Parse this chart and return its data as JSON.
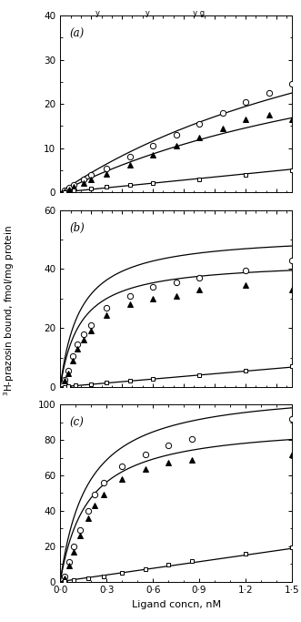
{
  "panels": [
    {
      "label": "(a)",
      "ylim": [
        0,
        40
      ],
      "yticks": [
        0,
        10,
        20,
        30,
        40
      ],
      "total_Bmax": 60.0,
      "total_Kd": 2.5,
      "specific_Bmax": 45.0,
      "specific_Kd": 2.5,
      "ns_slope": 3.5,
      "total_data_x": [
        0.03,
        0.06,
        0.09,
        0.15,
        0.2,
        0.3,
        0.45,
        0.6,
        0.75,
        0.9,
        1.05,
        1.2,
        1.35,
        1.5
      ],
      "total_data_y": [
        0.5,
        1.0,
        1.8,
        3.0,
        4.0,
        5.5,
        8.0,
        10.5,
        13.0,
        15.5,
        18.0,
        20.5,
        22.5,
        24.5
      ],
      "specific_data_x": [
        0.03,
        0.06,
        0.09,
        0.15,
        0.2,
        0.3,
        0.45,
        0.6,
        0.75,
        0.9,
        1.05,
        1.2,
        1.35,
        1.5
      ],
      "specific_data_y": [
        0.3,
        0.7,
        1.3,
        2.2,
        3.0,
        4.2,
        6.2,
        8.5,
        10.5,
        12.5,
        14.5,
        16.5,
        17.5,
        16.5
      ],
      "ns_data_x": [
        0.03,
        0.09,
        0.2,
        0.3,
        0.45,
        0.6,
        0.9,
        1.2,
        1.5
      ],
      "ns_data_y": [
        0.1,
        0.4,
        0.9,
        1.3,
        1.8,
        2.2,
        3.0,
        4.0,
        5.0
      ]
    },
    {
      "label": "(b)",
      "ylim": [
        0,
        60
      ],
      "yticks": [
        0,
        20,
        40,
        60
      ],
      "total_Bmax": 52.0,
      "total_Kd": 0.13,
      "specific_Bmax": 43.0,
      "specific_Kd": 0.13,
      "ns_slope": 4.5,
      "total_data_x": [
        0.03,
        0.05,
        0.08,
        0.11,
        0.15,
        0.2,
        0.3,
        0.45,
        0.6,
        0.75,
        0.9,
        1.2,
        1.5
      ],
      "total_data_y": [
        2.5,
        5.5,
        10.5,
        14.5,
        18.0,
        21.0,
        27.0,
        31.0,
        34.0,
        35.5,
        37.0,
        39.5,
        43.0
      ],
      "specific_data_x": [
        0.03,
        0.05,
        0.08,
        0.11,
        0.15,
        0.2,
        0.3,
        0.45,
        0.6,
        0.75,
        0.9,
        1.2,
        1.5
      ],
      "specific_data_y": [
        2.0,
        4.5,
        9.0,
        13.0,
        16.0,
        19.0,
        24.5,
        28.0,
        30.0,
        31.0,
        33.0,
        34.5,
        33.0
      ],
      "ns_data_x": [
        0.03,
        0.05,
        0.1,
        0.2,
        0.3,
        0.45,
        0.6,
        0.9,
        1.2,
        1.5
      ],
      "ns_data_y": [
        0.1,
        0.3,
        0.6,
        1.0,
        1.5,
        2.0,
        2.8,
        4.0,
        5.5,
        7.0
      ]
    },
    {
      "label": "(c)",
      "ylim": [
        0,
        100
      ],
      "yticks": [
        0,
        20,
        40,
        60,
        80,
        100
      ],
      "total_Bmax": 110.0,
      "total_Kd": 0.18,
      "specific_Bmax": 90.0,
      "specific_Kd": 0.18,
      "ns_slope": 12.5,
      "total_data_x": [
        0.03,
        0.06,
        0.09,
        0.13,
        0.18,
        0.22,
        0.28,
        0.4,
        0.55,
        0.7,
        0.85,
        1.5
      ],
      "total_data_y": [
        3.0,
        11.0,
        20.0,
        29.0,
        40.0,
        49.0,
        56.0,
        65.0,
        72.0,
        77.0,
        80.5,
        92.0
      ],
      "specific_data_x": [
        0.03,
        0.06,
        0.09,
        0.13,
        0.18,
        0.22,
        0.28,
        0.4,
        0.55,
        0.7,
        0.85,
        1.5
      ],
      "specific_data_y": [
        2.0,
        9.0,
        17.0,
        26.0,
        36.0,
        43.0,
        49.0,
        58.0,
        63.5,
        67.0,
        69.0,
        72.0
      ],
      "ns_data_x": [
        0.03,
        0.09,
        0.18,
        0.28,
        0.4,
        0.55,
        0.7,
        0.85,
        1.2,
        1.5
      ],
      "ns_data_y": [
        0.3,
        0.8,
        2.0,
        3.0,
        5.0,
        7.0,
        9.5,
        11.5,
        15.5,
        19.5
      ]
    }
  ],
  "xlabel": "Ligand concn, nM",
  "ylabel": "$^{3}$H-prazosin bound, fmol/mg protein",
  "xlim": [
    0,
    1.5
  ],
  "xticks": [
    0.0,
    0.3,
    0.6,
    0.9,
    1.2,
    1.5
  ],
  "xticklabels": [
    "0·0",
    "0·3",
    "0·6",
    "0·9",
    "1·2",
    "1·5"
  ],
  "marker_size": 4.5,
  "fig_width": 3.31,
  "fig_height": 6.83,
  "top_text": "y                   y                  y g"
}
